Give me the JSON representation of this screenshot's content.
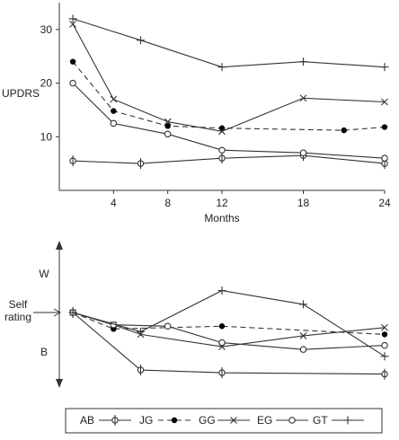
{
  "chart_data": [
    {
      "type": "line",
      "ylabel": "UPDRS",
      "xlabel": "Months",
      "ylim": [
        0,
        35
      ],
      "xlim": [
        0,
        24
      ],
      "xticks": [
        4,
        8,
        12,
        18,
        24
      ],
      "yticks": [
        10,
        20,
        30
      ],
      "series": [
        {
          "name": "AB",
          "marker": "diamond",
          "style": "solid",
          "points": [
            [
              1,
              5.5
            ],
            [
              6,
              5
            ],
            [
              12,
              6
            ],
            [
              18,
              6.5
            ],
            [
              24,
              5
            ]
          ]
        },
        {
          "name": "JG",
          "marker": "filled-circle",
          "style": "dashed",
          "points": [
            [
              1,
              24
            ],
            [
              4,
              14.8
            ],
            [
              8,
              12
            ],
            [
              12,
              11.6
            ],
            [
              21,
              11.2
            ],
            [
              24,
              11.8
            ]
          ]
        },
        {
          "name": "GG",
          "marker": "x",
          "style": "solid",
          "points": [
            [
              1,
              31
            ],
            [
              4,
              17
            ],
            [
              8,
              12.8
            ],
            [
              12,
              11
            ],
            [
              18,
              17.2
            ],
            [
              24,
              16.5
            ]
          ]
        },
        {
          "name": "EG",
          "marker": "open-circle",
          "style": "solid",
          "points": [
            [
              1,
              20
            ],
            [
              4,
              12.5
            ],
            [
              8,
              10.5
            ],
            [
              12,
              7.5
            ],
            [
              18,
              7
            ],
            [
              24,
              6
            ]
          ]
        },
        {
          "name": "GT",
          "marker": "plus",
          "style": "solid",
          "points": [
            [
              1,
              32
            ],
            [
              6,
              28
            ],
            [
              12,
              23
            ],
            [
              18,
              24
            ],
            [
              24,
              23
            ]
          ]
        }
      ]
    },
    {
      "type": "line",
      "ylabel": "Self rating",
      "top_label": "W",
      "bottom_label": "B",
      "ylim": [
        -3,
        3
      ],
      "series": [
        {
          "name": "AB",
          "marker": "diamond",
          "style": "solid",
          "points": [
            [
              1,
              0
            ],
            [
              6,
              -2.1
            ],
            [
              12,
              -2.2
            ],
            [
              24,
              -2.25
            ]
          ]
        },
        {
          "name": "JG",
          "marker": "filled-circle",
          "style": "dashed",
          "points": [
            [
              1,
              0
            ],
            [
              4,
              -0.6
            ],
            [
              12,
              -0.5
            ],
            [
              24,
              -0.8
            ]
          ]
        },
        {
          "name": "GG",
          "marker": "x",
          "style": "solid",
          "points": [
            [
              1,
              0
            ],
            [
              4,
              -0.45
            ],
            [
              6,
              -0.8
            ],
            [
              12,
              -1.25
            ],
            [
              18,
              -0.85
            ],
            [
              24,
              -0.55
            ]
          ]
        },
        {
          "name": "EG",
          "marker": "open-circle",
          "style": "solid",
          "points": [
            [
              1,
              0
            ],
            [
              4,
              -0.45
            ],
            [
              8,
              -0.5
            ],
            [
              12,
              -1.1
            ],
            [
              18,
              -1.35
            ],
            [
              24,
              -1.2
            ]
          ]
        },
        {
          "name": "GT",
          "marker": "plus",
          "style": "solid",
          "points": [
            [
              1,
              0
            ],
            [
              6,
              -0.7
            ],
            [
              12,
              0.8
            ],
            [
              18,
              0.3
            ],
            [
              24,
              -1.6
            ]
          ]
        }
      ]
    }
  ],
  "legend": [
    "AB",
    "JG",
    "GG",
    "EG",
    "GT"
  ]
}
